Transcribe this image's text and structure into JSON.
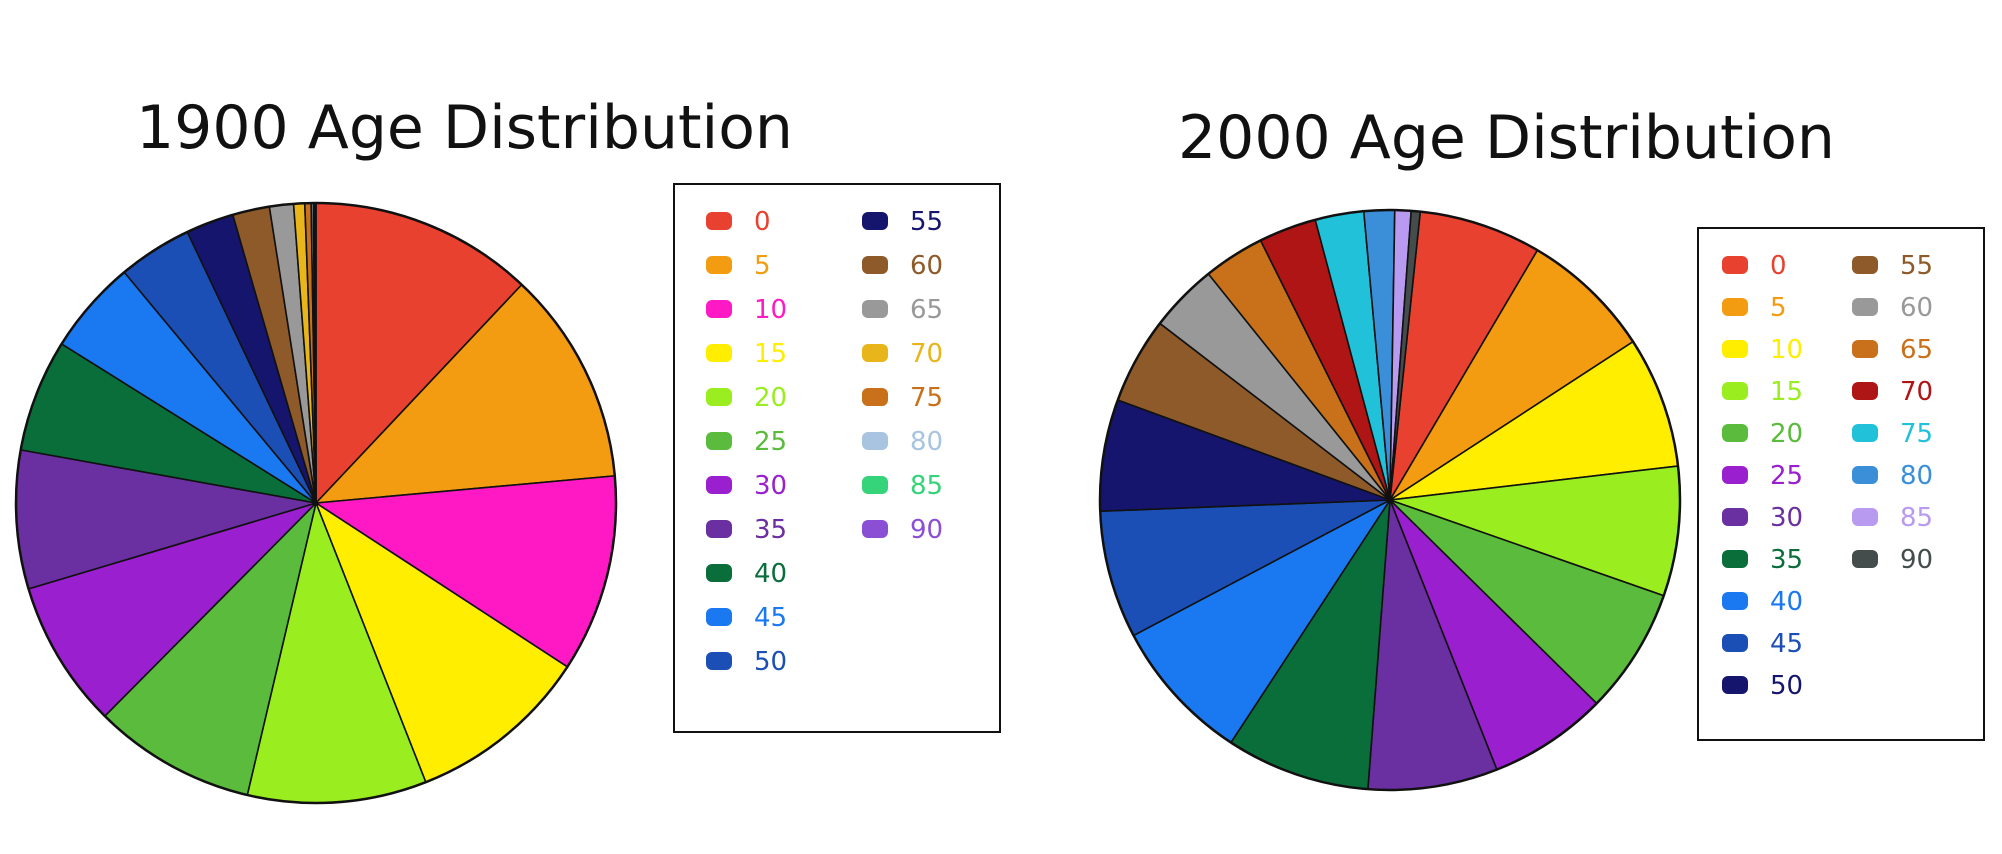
{
  "chart_data": [
    {
      "type": "pie",
      "title": "1900 Age Distribution",
      "categories": [
        "0",
        "5",
        "10",
        "15",
        "20",
        "25",
        "30",
        "35",
        "40",
        "45",
        "50",
        "55",
        "60",
        "65",
        "70",
        "75",
        "80",
        "85",
        "90"
      ],
      "values": [
        12.1,
        11.6,
        10.7,
        9.9,
        9.7,
        8.8,
        8.0,
        7.5,
        6.1,
        5.1,
        4.0,
        2.6,
        2.0,
        1.3,
        0.6,
        0.34,
        0.12,
        0.09,
        0.05
      ],
      "legend_position": "right"
    },
    {
      "type": "pie",
      "title": "2000 Age Distribution",
      "categories": [
        "0",
        "5",
        "10",
        "15",
        "20",
        "25",
        "30",
        "35",
        "40",
        "45",
        "50",
        "55",
        "60",
        "65",
        "70",
        "75",
        "80",
        "85",
        "90"
      ],
      "values": [
        6.8,
        7.3,
        7.3,
        7.2,
        7.0,
        6.6,
        7.2,
        8.0,
        8.0,
        7.1,
        6.2,
        4.8,
        3.8,
        3.4,
        3.2,
        2.7,
        1.7,
        0.9,
        0.5
      ],
      "legend_position": "right"
    }
  ],
  "colors": [
    "#e8412f",
    "#f39c12",
    "#ff19c4",
    "#ffee00",
    "#9aee1f",
    "#5bbb3c",
    "#9a1fcf",
    "#6a2fa0",
    "#0a6e3a",
    "#1a78f0",
    "#1c4fb5",
    "#15156e",
    "#8e5a2a",
    "#999999",
    "#e8b51a",
    "#c8701a",
    "#a8c4e0",
    "#35d47a",
    "#8b4fd6"
  ],
  "colors_2000": [
    "#e8412f",
    "#f39c12",
    "#ffee00",
    "#9aee1f",
    "#5bbb3c",
    "#9a1fcf",
    "#6a2fa0",
    "#0a6e3a",
    "#1a78f0",
    "#1c4fb5",
    "#15156e",
    "#8e5a2a",
    "#999999",
    "#c8701a",
    "#b01515",
    "#21c2d9",
    "#3a8fd8",
    "#b89af0",
    "#444c4c"
  ]
}
